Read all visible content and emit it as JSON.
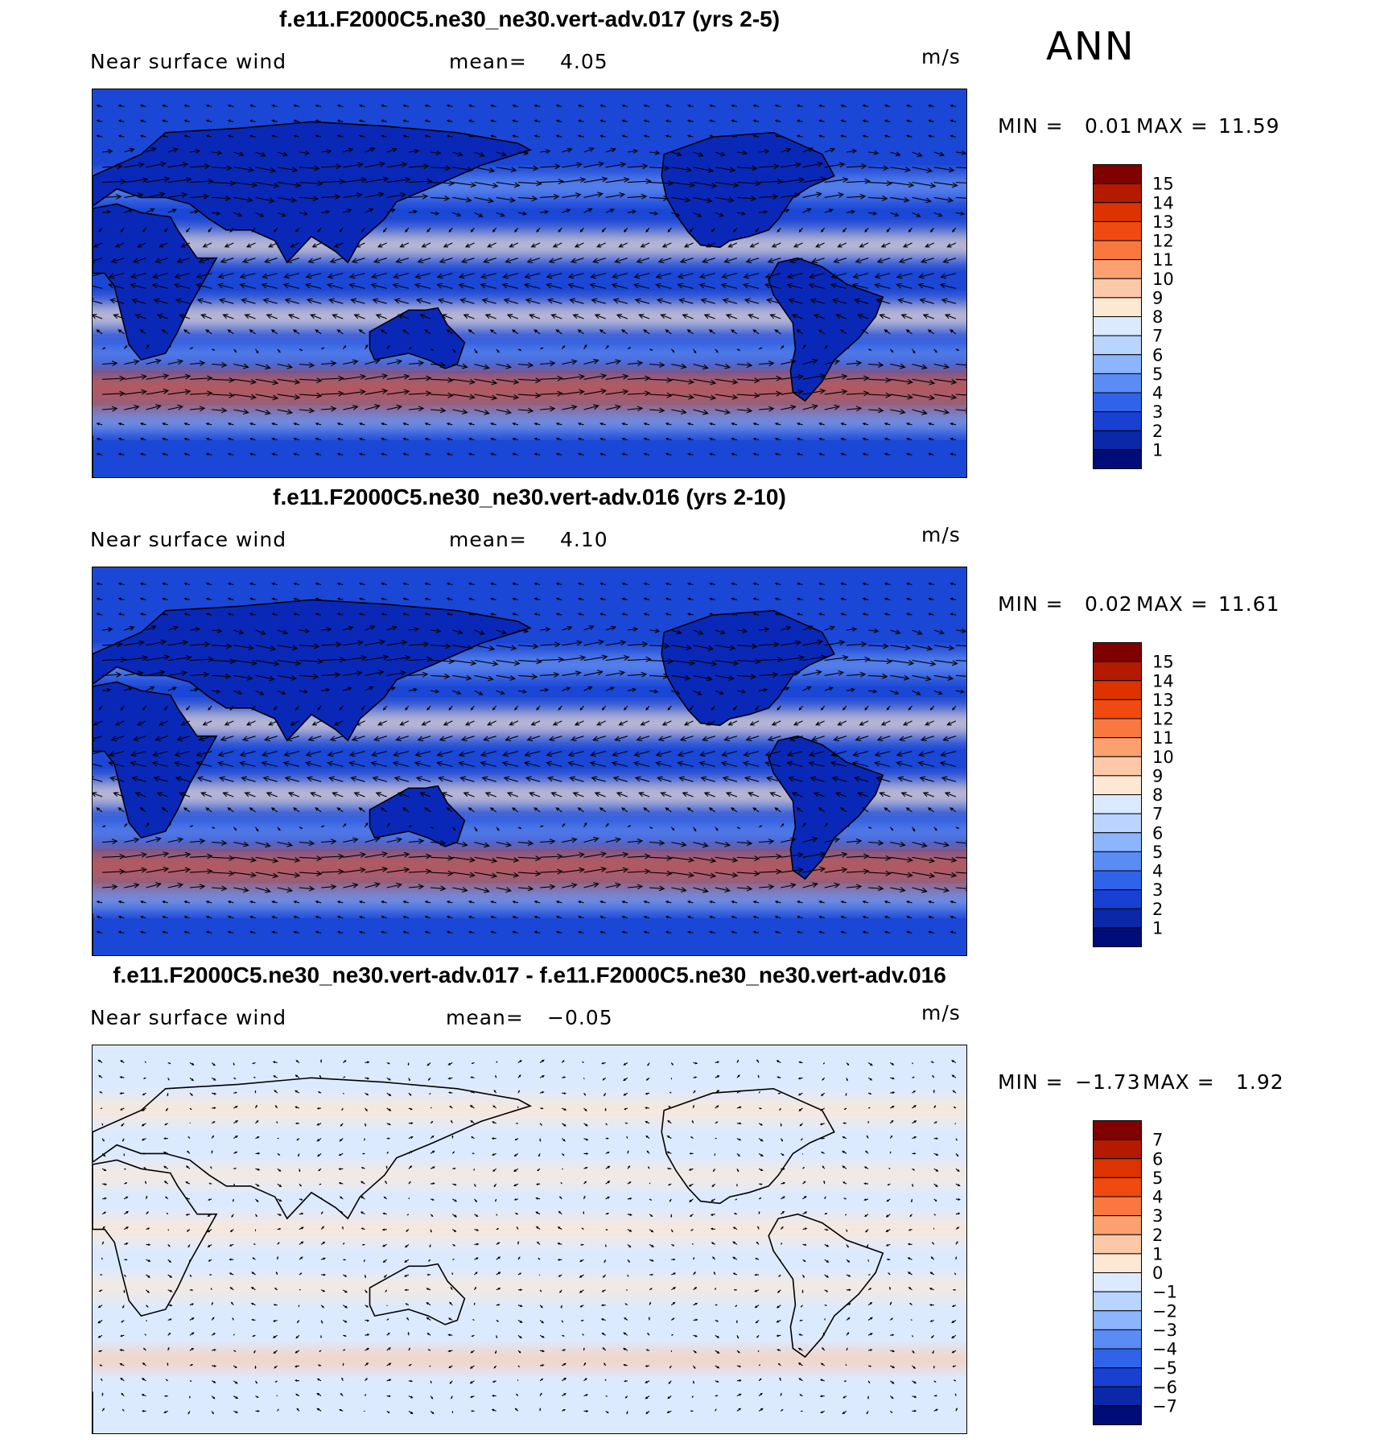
{
  "season": "ANN",
  "panels": [
    {
      "title": "f.e11.F2000C5.ne30_ne30.vert-adv.017 (yrs 2-5)",
      "variable": "Near surface wind",
      "mean_label": "mean=",
      "mean_value": "4.05",
      "units": "m/s",
      "min_label": "MIN =",
      "min_value": "0.01",
      "max_label": "MAX =",
      "max_value": "11.59",
      "style": "abs",
      "colorbar": {
        "labels": [
          "15",
          "14",
          "13",
          "12",
          "11",
          "10",
          "9",
          "8",
          "7",
          "6",
          "5",
          "4",
          "3",
          "2",
          "1"
        ],
        "colors": [
          "#800000",
          "#b31a00",
          "#dd3300",
          "#f04a10",
          "#fa7840",
          "#fca070",
          "#fdc8a8",
          "#fde8d4",
          "#dceaff",
          "#b8d4ff",
          "#8cb4ff",
          "#5b8cf5",
          "#2f63ea",
          "#1840d2",
          "#0a28a8",
          "#000d78"
        ]
      }
    },
    {
      "title": "f.e11.F2000C5.ne30_ne30.vert-adv.016 (yrs 2-10)",
      "variable": "Near surface wind",
      "mean_label": "mean=",
      "mean_value": "4.10",
      "units": "m/s",
      "min_label": "MIN =",
      "min_value": "0.02",
      "max_label": "MAX =",
      "max_value": "11.61",
      "style": "abs",
      "colorbar": {
        "labels": [
          "15",
          "14",
          "13",
          "12",
          "11",
          "10",
          "9",
          "8",
          "7",
          "6",
          "5",
          "4",
          "3",
          "2",
          "1"
        ],
        "colors": [
          "#800000",
          "#b31a00",
          "#dd3300",
          "#f04a10",
          "#fa7840",
          "#fca070",
          "#fdc8a8",
          "#fde8d4",
          "#dceaff",
          "#b8d4ff",
          "#8cb4ff",
          "#5b8cf5",
          "#2f63ea",
          "#1840d2",
          "#0a28a8",
          "#000d78"
        ]
      }
    },
    {
      "title": "f.e11.F2000C5.ne30_ne30.vert-adv.017 - f.e11.F2000C5.ne30_ne30.vert-adv.016",
      "variable": "Near surface wind",
      "mean_label": "mean=",
      "mean_value": "−0.05",
      "units": "m/s",
      "min_label": "MIN =",
      "min_value": "−1.73",
      "max_label": "MAX =",
      "max_value": "1.92",
      "style": "diff",
      "colorbar": {
        "labels": [
          "7",
          "6",
          "5",
          "4",
          "3",
          "2",
          "1",
          "0",
          "−1",
          "−2",
          "−3",
          "−4",
          "−5",
          "−6",
          "−7"
        ],
        "colors": [
          "#800000",
          "#b31a00",
          "#dd3300",
          "#f04a10",
          "#fa7840",
          "#fca070",
          "#fdc8a8",
          "#fde8d4",
          "#dceaff",
          "#b8d4ff",
          "#8cb4ff",
          "#5b8cf5",
          "#2f63ea",
          "#1840d2",
          "#0a28a8",
          "#000d78"
        ]
      }
    }
  ]
}
